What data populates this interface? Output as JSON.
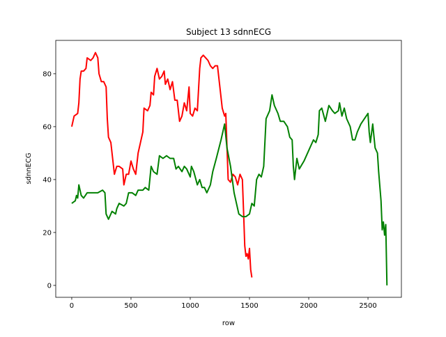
{
  "chart_data": {
    "type": "line",
    "title": "Subject 13 sdnnECG",
    "x_label": "row",
    "y_label": "sdnnECG",
    "xlim": [
      -135,
      2782
    ],
    "ylim": [
      -4.5,
      92.6
    ],
    "xticks": [
      0,
      500,
      1000,
      1500,
      2000,
      2500
    ],
    "yticks": [
      0,
      20,
      40,
      60,
      80
    ],
    "series": [
      {
        "color": "#ff0000",
        "x": [
          0,
          20,
          50,
          60,
          70,
          80,
          100,
          120,
          130,
          160,
          180,
          200,
          220,
          230,
          250,
          270,
          290,
          300,
          310,
          330,
          350,
          360,
          380,
          400,
          430,
          440,
          460,
          480,
          500,
          520,
          540,
          560,
          580,
          600,
          610,
          640,
          660,
          670,
          690,
          700,
          720,
          740,
          760,
          780,
          790,
          810,
          830,
          850,
          870,
          890,
          910,
          930,
          950,
          970,
          990,
          1000,
          1020,
          1040,
          1060,
          1080,
          1090,
          1110,
          1130,
          1150,
          1170,
          1190,
          1210,
          1230,
          1250,
          1270,
          1290,
          1300,
          1320,
          1340,
          1360,
          1380,
          1400,
          1420,
          1440,
          1450,
          1460,
          1470,
          1480,
          1490,
          1500,
          1510,
          1520
        ],
        "values": [
          60,
          64,
          65,
          69,
          78,
          81,
          81,
          82,
          86,
          85,
          86,
          88,
          86,
          80,
          77,
          77,
          75,
          63,
          56,
          54,
          46,
          42,
          45,
          45,
          44,
          38,
          42,
          42,
          47,
          44,
          42,
          50,
          54,
          58,
          67,
          66,
          68,
          73,
          72,
          79,
          82,
          78,
          79,
          81,
          76,
          78,
          74,
          77,
          70,
          70,
          62,
          64,
          69,
          66,
          75,
          65,
          64,
          67,
          66,
          82,
          86,
          87,
          86,
          85,
          83,
          82,
          83,
          83,
          75,
          67,
          64,
          65,
          40,
          39,
          42,
          41,
          38,
          42,
          40,
          28,
          15,
          11,
          12,
          10,
          14,
          6,
          3
        ]
      },
      {
        "color": "#008000",
        "x": [
          0,
          30,
          40,
          50,
          60,
          80,
          100,
          130,
          180,
          220,
          260,
          280,
          290,
          310,
          340,
          370,
          380,
          400,
          440,
          460,
          480,
          510,
          540,
          560,
          600,
          620,
          650,
          670,
          690,
          720,
          740,
          770,
          800,
          830,
          860,
          880,
          900,
          930,
          950,
          970,
          1000,
          1010,
          1030,
          1060,
          1080,
          1100,
          1120,
          1140,
          1170,
          1190,
          1220,
          1260,
          1290,
          1310,
          1340,
          1370,
          1390,
          1410,
          1440,
          1470,
          1500,
          1520,
          1540,
          1560,
          1580,
          1600,
          1620,
          1640,
          1670,
          1690,
          1710,
          1740,
          1760,
          1790,
          1820,
          1840,
          1860,
          1870,
          1880,
          1900,
          1920,
          1960,
          2000,
          2040,
          2060,
          2080,
          2090,
          2110,
          2140,
          2170,
          2200,
          2220,
          2250,
          2260,
          2280,
          2300,
          2320,
          2350,
          2370,
          2390,
          2410,
          2440,
          2470,
          2500,
          2510,
          2520,
          2540,
          2560,
          2580,
          2590,
          2610,
          2620,
          2630,
          2640,
          2650,
          2660
        ],
        "values": [
          31,
          32,
          34,
          33,
          38,
          34,
          33,
          35,
          35,
          35,
          36,
          35,
          27,
          25,
          28,
          27,
          29,
          31,
          30,
          31,
          35,
          35,
          34,
          36,
          36,
          37,
          36,
          45,
          43,
          42,
          49,
          48,
          49,
          48,
          48,
          44,
          45,
          43,
          45,
          44,
          41,
          45,
          43,
          38,
          40,
          37,
          37,
          35,
          38,
          43,
          48,
          55,
          61,
          52,
          45,
          35,
          31,
          27,
          26,
          26,
          27,
          31,
          30,
          40,
          42,
          41,
          45,
          63,
          66,
          72,
          68,
          65,
          62,
          62,
          60,
          56,
          55,
          45,
          40,
          48,
          44,
          47,
          51,
          55,
          54,
          57,
          66,
          67,
          62,
          68,
          66,
          65,
          66,
          69,
          64,
          67,
          63,
          60,
          55,
          55,
          58,
          61,
          63,
          65,
          58,
          54,
          61,
          52,
          50,
          43,
          32,
          21,
          24,
          19,
          23,
          0
        ]
      }
    ]
  }
}
